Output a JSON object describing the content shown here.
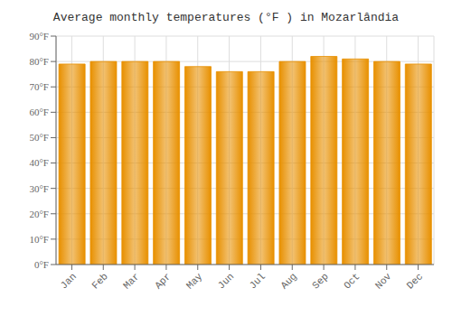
{
  "chart_data": {
    "type": "bar",
    "title": "Average monthly temperatures (°F ) in Mozarlândia",
    "categories": [
      "Jan",
      "Feb",
      "Mar",
      "Apr",
      "May",
      "Jun",
      "Jul",
      "Aug",
      "Sep",
      "Oct",
      "Nov",
      "Dec"
    ],
    "values": [
      79,
      80,
      80,
      80,
      78,
      76,
      76,
      80,
      82,
      81,
      80,
      79
    ],
    "color": "#E89000",
    "ylim": [
      0,
      90
    ],
    "yticks": [
      {
        "value": 0,
        "label": "0°F"
      },
      {
        "value": 10,
        "label": "10°F"
      },
      {
        "value": 20,
        "label": "20°F"
      },
      {
        "value": 30,
        "label": "30°F"
      },
      {
        "value": 40,
        "label": "40°F"
      },
      {
        "value": 50,
        "label": "50°F"
      },
      {
        "value": 60,
        "label": "60°F"
      },
      {
        "value": 70,
        "label": "70°F"
      },
      {
        "value": 80,
        "label": "80°F"
      },
      {
        "value": 90,
        "label": "90°F"
      }
    ],
    "grid": true
  }
}
